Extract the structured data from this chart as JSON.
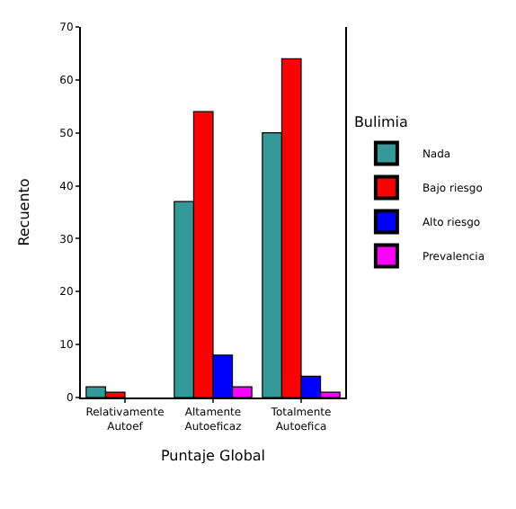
{
  "chart_data": {
    "type": "bar",
    "xlabel": "Puntaje Global",
    "ylabel": "Recuento",
    "legend_title": "Bulimia",
    "categories": [
      "Relativamente Autoef",
      "Altamente Autoeficaz",
      "Totalmente Autoefica"
    ],
    "series": [
      {
        "name": "Nada",
        "color": "#339999",
        "values": [
          2,
          37,
          50
        ]
      },
      {
        "name": "Bajo riesgo",
        "color": "#ff0000",
        "values": [
          1,
          54,
          64
        ]
      },
      {
        "name": "Alto riesgo",
        "color": "#0000ff",
        "values": [
          null,
          8,
          4
        ]
      },
      {
        "name": "Prevalencia",
        "color": "#ff00ff",
        "values": [
          null,
          2,
          1
        ]
      }
    ],
    "ylim": [
      0,
      70
    ],
    "yticks": [
      0,
      10,
      20,
      30,
      40,
      50,
      60,
      70
    ],
    "grid": false,
    "legend": "right"
  }
}
